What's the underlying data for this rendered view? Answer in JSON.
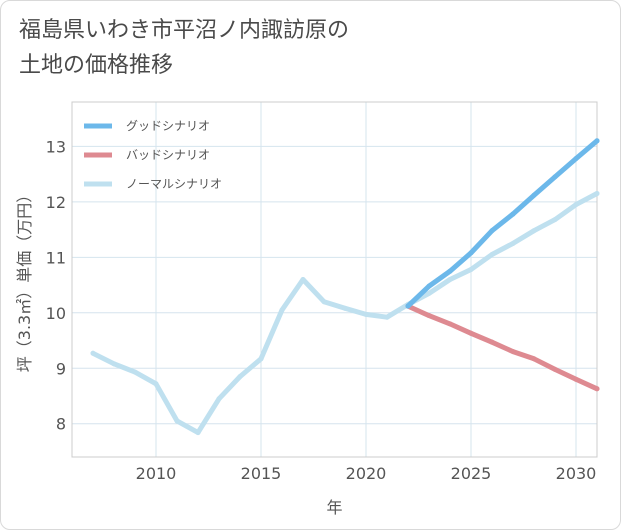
{
  "page": {
    "title_line1": "福島県いわき市平沼ノ内諏訪原の",
    "title_line2": "土地の価格推移"
  },
  "chart_data": {
    "type": "line",
    "title": "福島県いわき市平沼ノ内諏訪原の土地の価格推移",
    "xlabel": "年",
    "ylabel": "坪（3.3㎡）単価（万円）",
    "xlim": [
      2006,
      2031
    ],
    "ylim": [
      7.4,
      13.8
    ],
    "xticks": [
      2010,
      2015,
      2020,
      2025,
      2030
    ],
    "yticks": [
      8,
      9,
      10,
      11,
      12,
      13
    ],
    "grid": true,
    "legend_position": "top-left",
    "series": [
      {
        "name": "グッドシナリオ",
        "color": "#6cb8ea",
        "x": [
          2022,
          2023,
          2024,
          2025,
          2026,
          2027,
          2028,
          2029,
          2030,
          2031
        ],
        "values": [
          10.12,
          10.48,
          10.75,
          11.08,
          11.48,
          11.78,
          12.12,
          12.45,
          12.78,
          13.1
        ]
      },
      {
        "name": "バッドシナリオ",
        "color": "#de8a91",
        "x": [
          2022,
          2023,
          2024,
          2025,
          2026,
          2027,
          2028,
          2029,
          2030,
          2031
        ],
        "values": [
          10.12,
          9.95,
          9.8,
          9.63,
          9.47,
          9.3,
          9.17,
          8.98,
          8.8,
          8.63
        ]
      },
      {
        "name": "ノーマルシナリオ",
        "color": "#bfe0ef",
        "x": [
          2007,
          2008,
          2009,
          2010,
          2011,
          2012,
          2013,
          2014,
          2015,
          2016,
          2017,
          2018,
          2019,
          2020,
          2021,
          2022,
          2023,
          2024,
          2025,
          2026,
          2027,
          2028,
          2029,
          2030,
          2031
        ],
        "values": [
          9.27,
          9.08,
          8.93,
          8.72,
          8.05,
          7.84,
          8.45,
          8.85,
          9.17,
          10.05,
          10.6,
          10.2,
          10.08,
          9.97,
          9.92,
          10.15,
          10.35,
          10.6,
          10.78,
          11.05,
          11.25,
          11.48,
          11.68,
          11.95,
          12.15
        ]
      }
    ]
  }
}
